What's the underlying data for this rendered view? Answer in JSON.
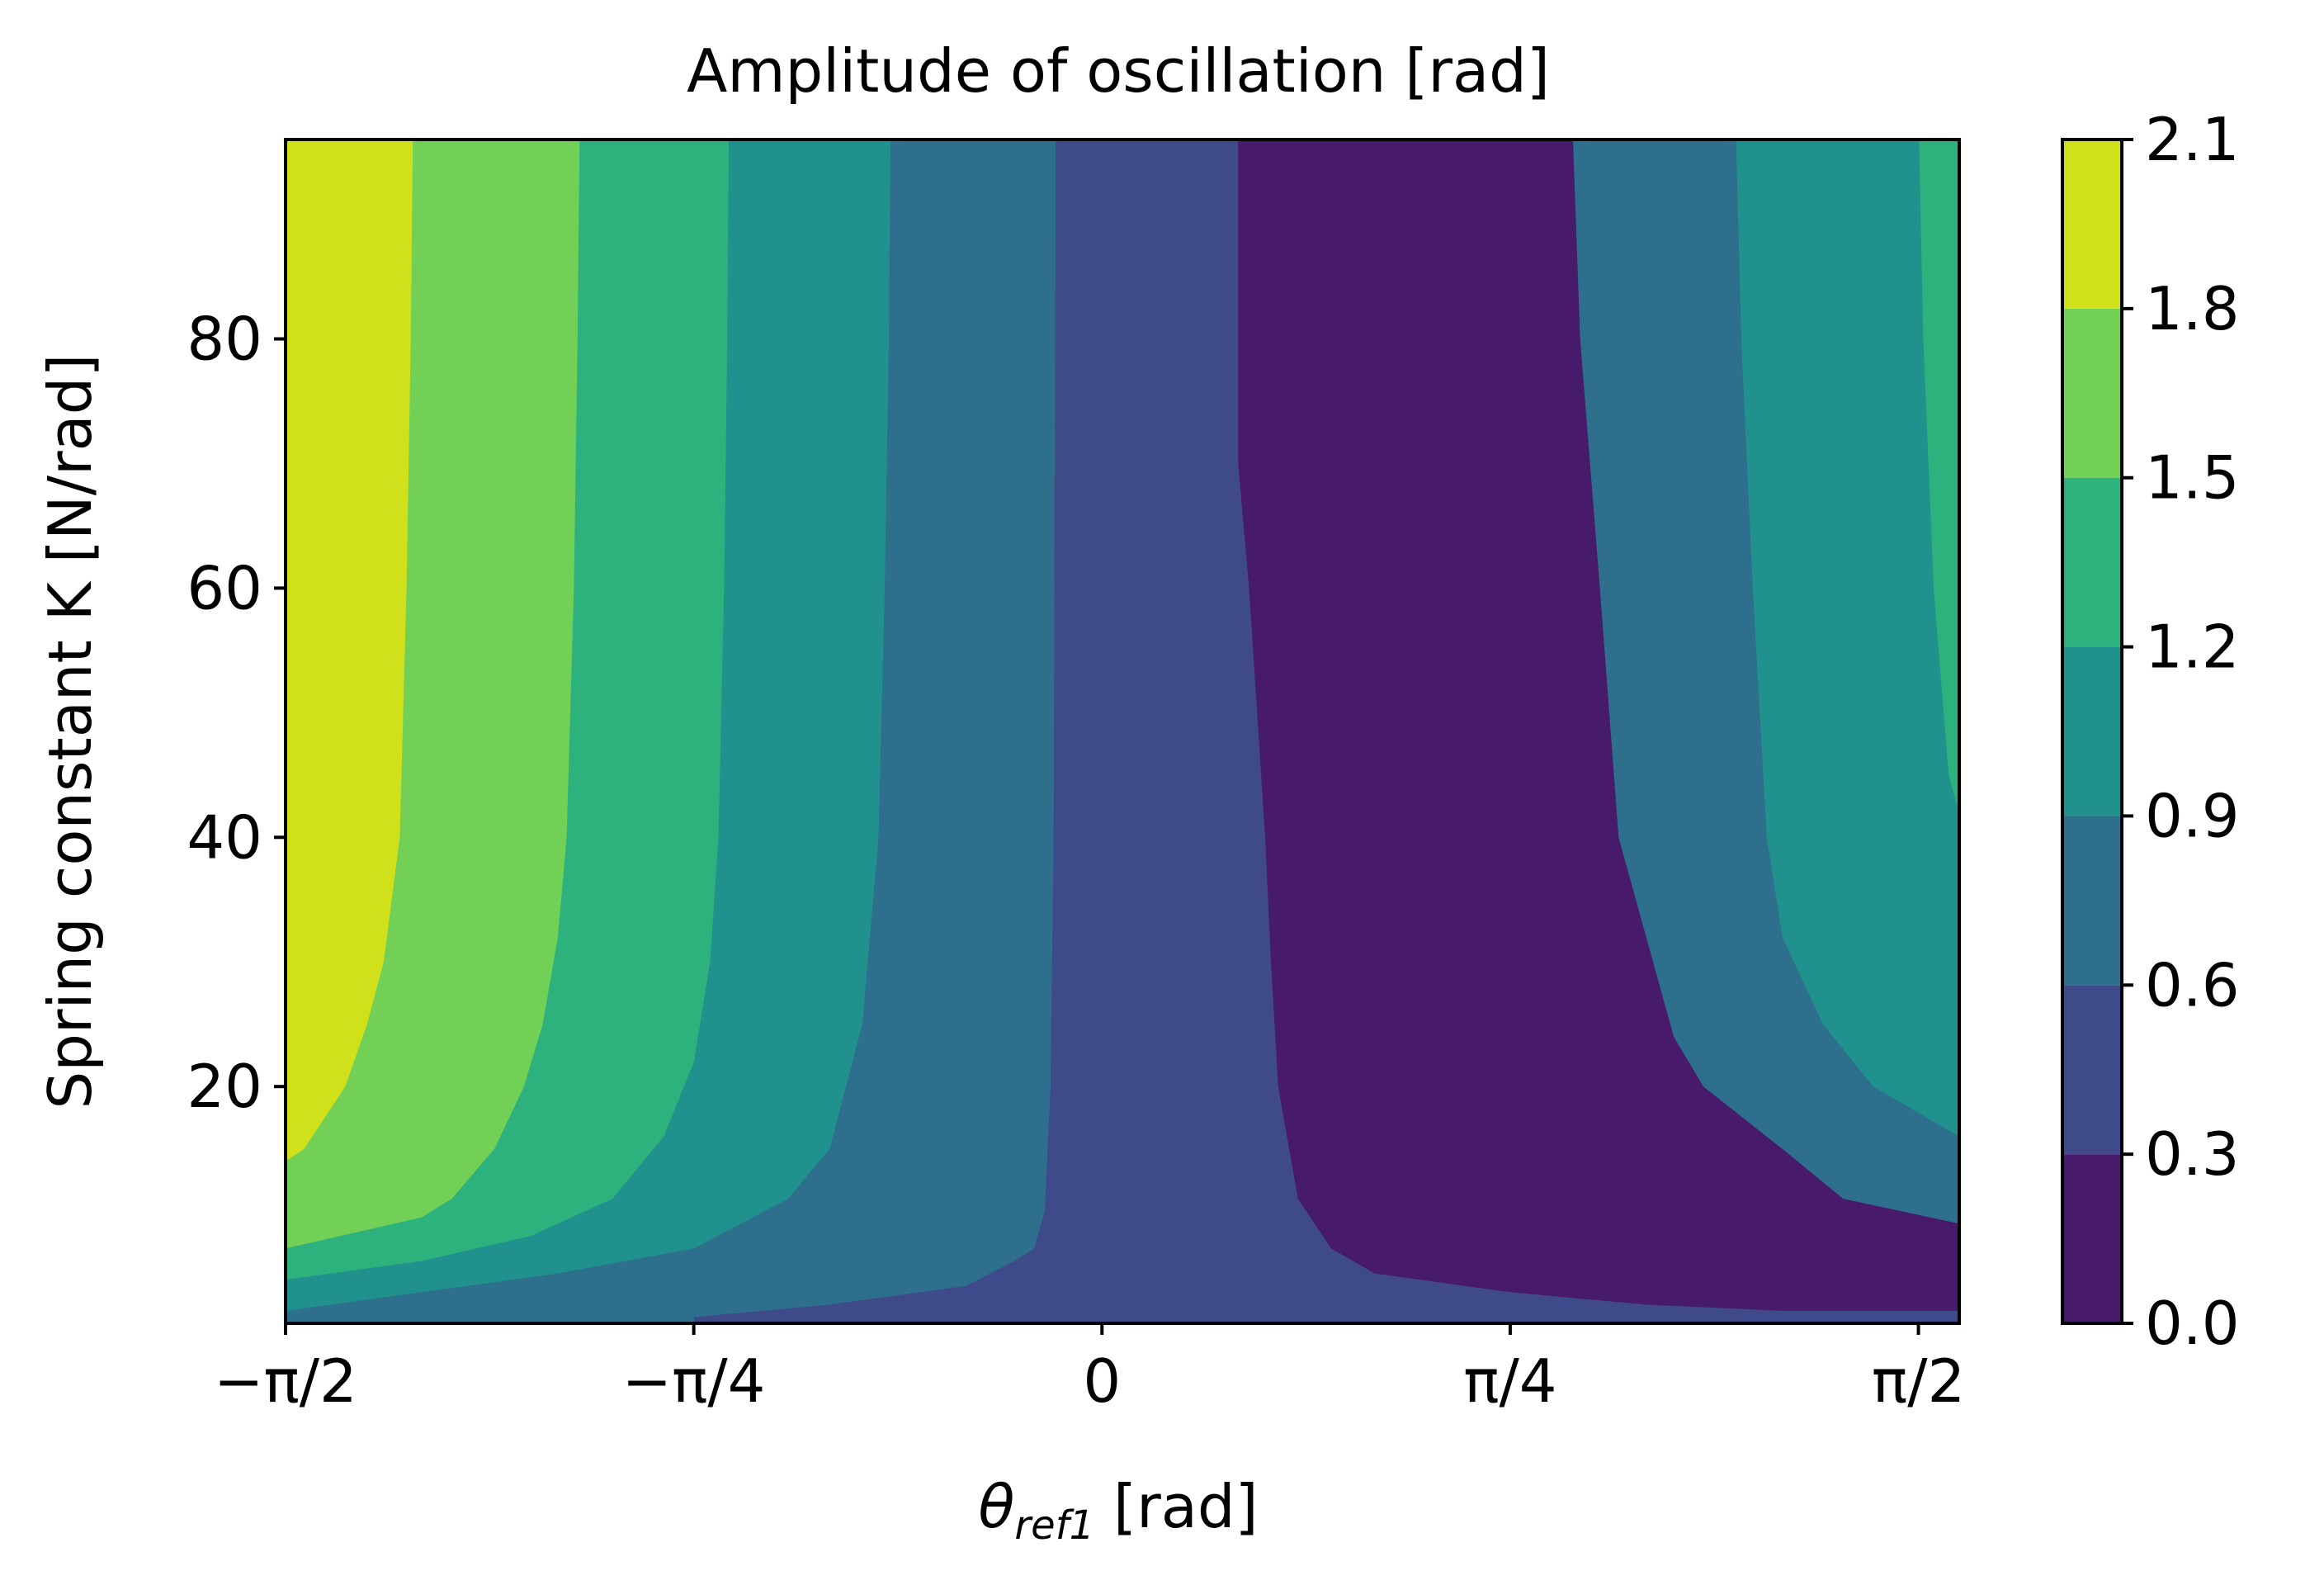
{
  "chart_data": {
    "type": "contourf",
    "title": "Amplitude of oscillation [rad]",
    "xlabel": "θ",
    "xlabel_sub": "ref1",
    "xlabel_unit": " [rad]",
    "ylabel": "Spring constant K [N/rad]",
    "xlim": [
      -1.5708,
      1.6493
    ],
    "ylim": [
      1,
      96
    ],
    "x_ticks": [
      {
        "value": -1.5708,
        "label": "−π/2"
      },
      {
        "value": -0.7854,
        "label": "−π/4"
      },
      {
        "value": 0,
        "label": "0"
      },
      {
        "value": 0.7854,
        "label": "π/4"
      },
      {
        "value": 1.5708,
        "label": "π/2"
      }
    ],
    "y_ticks": [
      {
        "value": 20,
        "label": "20"
      },
      {
        "value": 40,
        "label": "40"
      },
      {
        "value": 60,
        "label": "60"
      },
      {
        "value": 80,
        "label": "80"
      }
    ],
    "levels": [
      0.0,
      0.3,
      0.6,
      0.9,
      1.2,
      1.5,
      1.8,
      2.1
    ],
    "level_labels": [
      "0.0",
      "0.3",
      "0.6",
      "0.9",
      "1.2",
      "1.5",
      "1.8",
      "2.1"
    ],
    "level_colors": [
      "#481a6c",
      "#3e4a89",
      "#2e6f8e",
      "#20918c",
      "#2db27d",
      "#72d056",
      "#d0e11c"
    ],
    "contour_boundaries": [
      {
        "level": 0.3,
        "points": [
          [
            0.262,
            96
          ],
          [
            0.262,
            70
          ],
          [
            0.283,
            60
          ],
          [
            0.314,
            40
          ],
          [
            0.325,
            30
          ],
          [
            0.339,
            20
          ],
          [
            0.377,
            11
          ],
          [
            0.441,
            7
          ],
          [
            0.525,
            5
          ],
          [
            0.785,
            3.5
          ],
          [
            1.047,
            2.5
          ],
          [
            1.309,
            2
          ],
          [
            1.649,
            2
          ],
          [
            1.649,
            96
          ]
        ]
      },
      {
        "level": 0.6,
        "points": [
          [
            -0.089,
            96
          ],
          [
            -0.09,
            80
          ],
          [
            -0.093,
            40
          ],
          [
            -0.099,
            20
          ],
          [
            -0.11,
            10
          ],
          [
            -0.131,
            7
          ],
          [
            -0.168,
            6
          ],
          [
            -0.262,
            4
          ],
          [
            -0.524,
            2.5
          ],
          [
            -0.785,
            1.5
          ],
          [
            -0.785,
            1
          ]
        ]
      },
      {
        "level": 0.6,
        "points": [
          [
            0.906,
            96
          ],
          [
            0.92,
            80
          ],
          [
            0.958,
            60
          ],
          [
            0.994,
            40
          ],
          [
            1.047,
            32
          ],
          [
            1.1,
            24
          ],
          [
            1.157,
            20
          ],
          [
            1.309,
            15
          ],
          [
            1.426,
            11
          ],
          [
            1.649,
            9
          ],
          [
            1.649,
            96
          ]
        ]
      },
      {
        "level": 0.9,
        "points": [
          [
            -0.407,
            96
          ],
          [
            -0.41,
            80
          ],
          [
            -0.418,
            60
          ],
          [
            -0.43,
            40
          ],
          [
            -0.461,
            25
          ],
          [
            -0.524,
            15
          ],
          [
            -0.604,
            11
          ],
          [
            -0.785,
            7
          ],
          [
            -1.047,
            5
          ],
          [
            -1.309,
            3.5
          ],
          [
            -1.5708,
            2
          ],
          [
            -1.5708,
            1
          ]
        ]
      },
      {
        "level": 0.9,
        "points": [
          [
            1.22,
            96
          ],
          [
            1.23,
            80
          ],
          [
            1.252,
            60
          ],
          [
            1.279,
            40
          ],
          [
            1.309,
            32
          ],
          [
            1.387,
            25
          ],
          [
            1.484,
            20
          ],
          [
            1.649,
            16
          ],
          [
            1.649,
            96
          ]
        ]
      },
      {
        "level": 1.2,
        "points": [
          [
            -0.718,
            96
          ],
          [
            -0.721,
            80
          ],
          [
            -0.727,
            60
          ],
          [
            -0.738,
            40
          ],
          [
            -0.754,
            30
          ],
          [
            -0.785,
            22
          ],
          [
            -0.843,
            16
          ],
          [
            -0.942,
            11
          ],
          [
            -1.099,
            8
          ],
          [
            -1.309,
            6
          ],
          [
            -1.5708,
            4.5
          ],
          [
            -1.5708,
            1
          ]
        ]
      },
      {
        "level": 1.2,
        "points": [
          [
            1.572,
            96
          ],
          [
            1.58,
            80
          ],
          [
            1.6,
            60
          ],
          [
            1.629,
            45
          ],
          [
            1.649,
            42
          ],
          [
            1.649,
            96
          ]
        ]
      },
      {
        "level": 1.5,
        "points": [
          [
            -1.005,
            96
          ],
          [
            -1.009,
            80
          ],
          [
            -1.016,
            60
          ],
          [
            -1.03,
            40
          ],
          [
            -1.047,
            32
          ],
          [
            -1.076,
            25
          ],
          [
            -1.112,
            20
          ],
          [
            -1.169,
            15
          ],
          [
            -1.251,
            11
          ],
          [
            -1.309,
            9.5
          ],
          [
            -1.5708,
            7
          ],
          [
            -1.5708,
            1
          ]
        ]
      },
      {
        "level": 1.8,
        "points": [
          [
            -1.326,
            96
          ],
          [
            -1.33,
            80
          ],
          [
            -1.338,
            60
          ],
          [
            -1.351,
            40
          ],
          [
            -1.382,
            30
          ],
          [
            -1.414,
            25
          ],
          [
            -1.456,
            20
          ],
          [
            -1.535,
            15
          ],
          [
            -1.5708,
            14
          ],
          [
            -1.5708,
            1
          ]
        ]
      },
      {
        "level": 2.1,
        "points": [
          [
            -1.5708,
            96
          ],
          [
            -1.5708,
            1
          ]
        ]
      }
    ],
    "bands": [
      {
        "fill": 0,
        "poly": [
          [
            0.262,
            96
          ],
          [
            0.262,
            70
          ],
          [
            0.283,
            60
          ],
          [
            0.314,
            40
          ],
          [
            0.325,
            30
          ],
          [
            0.339,
            20
          ],
          [
            0.377,
            11
          ],
          [
            0.441,
            7
          ],
          [
            0.525,
            5
          ],
          [
            0.785,
            3.5
          ],
          [
            1.047,
            2.5
          ],
          [
            1.309,
            2
          ],
          [
            1.649,
            2
          ],
          [
            1.649,
            96
          ]
        ]
      },
      {
        "fill": 2,
        "poly": [
          [
            0.906,
            96
          ],
          [
            0.92,
            80
          ],
          [
            0.958,
            60
          ],
          [
            0.994,
            40
          ],
          [
            1.047,
            32
          ],
          [
            1.1,
            24
          ],
          [
            1.157,
            20
          ],
          [
            1.309,
            15
          ],
          [
            1.426,
            11
          ],
          [
            1.649,
            9
          ],
          [
            1.649,
            96
          ]
        ]
      },
      {
        "fill": 3,
        "poly": [
          [
            1.22,
            96
          ],
          [
            1.23,
            80
          ],
          [
            1.252,
            60
          ],
          [
            1.279,
            40
          ],
          [
            1.309,
            32
          ],
          [
            1.387,
            25
          ],
          [
            1.484,
            20
          ],
          [
            1.649,
            16
          ],
          [
            1.649,
            96
          ]
        ]
      },
      {
        "fill": 4,
        "poly": [
          [
            1.572,
            96
          ],
          [
            1.58,
            80
          ],
          [
            1.6,
            60
          ],
          [
            1.629,
            45
          ],
          [
            1.649,
            42
          ],
          [
            1.649,
            96
          ]
        ]
      },
      {
        "fill": 2,
        "poly": [
          [
            -1.5708,
            96
          ],
          [
            -0.089,
            96
          ],
          [
            -0.09,
            80
          ],
          [
            -0.093,
            40
          ],
          [
            -0.099,
            20
          ],
          [
            -0.11,
            10
          ],
          [
            -0.131,
            7
          ],
          [
            -0.168,
            6
          ],
          [
            -0.262,
            4
          ],
          [
            -0.524,
            2.5
          ],
          [
            -0.785,
            1.5
          ],
          [
            -0.785,
            1
          ],
          [
            -1.5708,
            1
          ]
        ]
      },
      {
        "fill": 3,
        "poly": [
          [
            -1.5708,
            96
          ],
          [
            -0.407,
            96
          ],
          [
            -0.41,
            80
          ],
          [
            -0.418,
            60
          ],
          [
            -0.43,
            40
          ],
          [
            -0.461,
            25
          ],
          [
            -0.524,
            15
          ],
          [
            -0.604,
            11
          ],
          [
            -0.785,
            7
          ],
          [
            -1.047,
            5
          ],
          [
            -1.309,
            3.5
          ],
          [
            -1.5708,
            2
          ]
        ]
      },
      {
        "fill": 4,
        "poly": [
          [
            -1.5708,
            96
          ],
          [
            -0.718,
            96
          ],
          [
            -0.721,
            80
          ],
          [
            -0.727,
            60
          ],
          [
            -0.738,
            40
          ],
          [
            -0.754,
            30
          ],
          [
            -0.785,
            22
          ],
          [
            -0.843,
            16
          ],
          [
            -0.942,
            11
          ],
          [
            -1.099,
            8
          ],
          [
            -1.309,
            6
          ],
          [
            -1.5708,
            4.5
          ]
        ]
      },
      {
        "fill": 5,
        "poly": [
          [
            -1.5708,
            96
          ],
          [
            -1.005,
            96
          ],
          [
            -1.009,
            80
          ],
          [
            -1.016,
            60
          ],
          [
            -1.03,
            40
          ],
          [
            -1.047,
            32
          ],
          [
            -1.076,
            25
          ],
          [
            -1.112,
            20
          ],
          [
            -1.169,
            15
          ],
          [
            -1.251,
            11
          ],
          [
            -1.309,
            9.5
          ],
          [
            -1.5708,
            7
          ]
        ]
      },
      {
        "fill": 6,
        "poly": [
          [
            -1.5708,
            96
          ],
          [
            -1.326,
            96
          ],
          [
            -1.33,
            80
          ],
          [
            -1.338,
            60
          ],
          [
            -1.351,
            40
          ],
          [
            -1.382,
            30
          ],
          [
            -1.414,
            25
          ],
          [
            -1.456,
            20
          ],
          [
            -1.535,
            15
          ],
          [
            -1.5708,
            14
          ]
        ]
      }
    ]
  }
}
